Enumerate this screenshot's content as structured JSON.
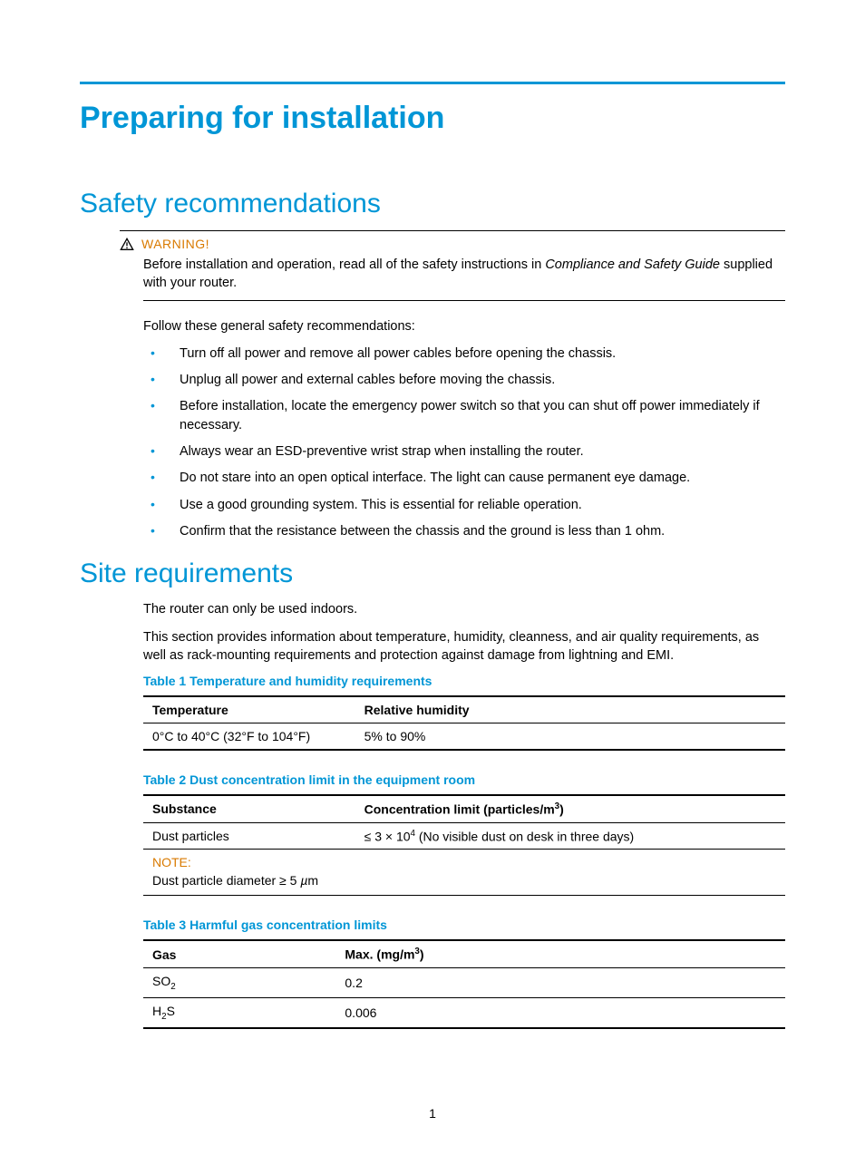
{
  "colors": {
    "accent": "#0096d6",
    "warning": "#d97a00",
    "text": "#000000",
    "background": "#ffffff"
  },
  "page": {
    "number": "1",
    "main_title": "Preparing for installation"
  },
  "safety": {
    "heading": "Safety recommendations",
    "warning_label": "WARNING!",
    "warning_text_pre": "Before installation and operation, read all of the safety instructions in ",
    "warning_text_italic": "Compliance and Safety Guide",
    "warning_text_post": " supplied with your router.",
    "intro": "Follow these general safety recommendations:",
    "bullets": [
      "Turn off all power and remove all power cables before opening the chassis.",
      "Unplug all power and external cables before moving the chassis.",
      "Before installation, locate the emergency power switch so that you can shut off power immediately if necessary.",
      "Always wear an ESD-preventive wrist strap when installing the router.",
      "Do not stare into an open optical interface. The light can cause permanent eye damage.",
      "Use a good grounding system. This is essential for reliable operation.",
      "Confirm that the resistance between the chassis and the ground is less than 1 ohm."
    ]
  },
  "site": {
    "heading": "Site requirements",
    "p1": "The router can only be used indoors.",
    "p2": "This section provides information about temperature, humidity, cleanness, and air quality requirements, as well as rack-mounting requirements and protection against damage from lightning and EMI."
  },
  "table1": {
    "caption": "Table 1 Temperature and humidity requirements",
    "col1_header": "Temperature",
    "col2_header": "Relative humidity",
    "col_widths": [
      "33%",
      "67%"
    ],
    "row1_c1": "0°C to 40°C (32°F to 104°F)",
    "row1_c2": "5% to 90%"
  },
  "table2": {
    "caption": "Table 2 Dust concentration limit in the equipment room",
    "col1_header": "Substance",
    "col2_header_html": "Concentration limit (particles/m<sup>3</sup>)",
    "col_widths": [
      "33%",
      "67%"
    ],
    "row1_c1": "Dust particles",
    "row1_c2_html": "≤ 3 × 10<sup>4</sup> (No visible dust on desk in three days)",
    "note_label": "NOTE:",
    "note_text_html": "Dust particle diameter ≥ 5 <i>µ</i>m"
  },
  "table3": {
    "caption": "Table 3 Harmful gas concentration limits",
    "col1_header": "Gas",
    "col2_header_html": "Max. (mg/m<sup>3</sup>)",
    "col_widths": [
      "30%",
      "70%"
    ],
    "rows": [
      {
        "c1_html": "SO<sub>2</sub>",
        "c2": "0.2"
      },
      {
        "c1_html": "H<sub>2</sub>S",
        "c2": "0.006"
      }
    ]
  }
}
